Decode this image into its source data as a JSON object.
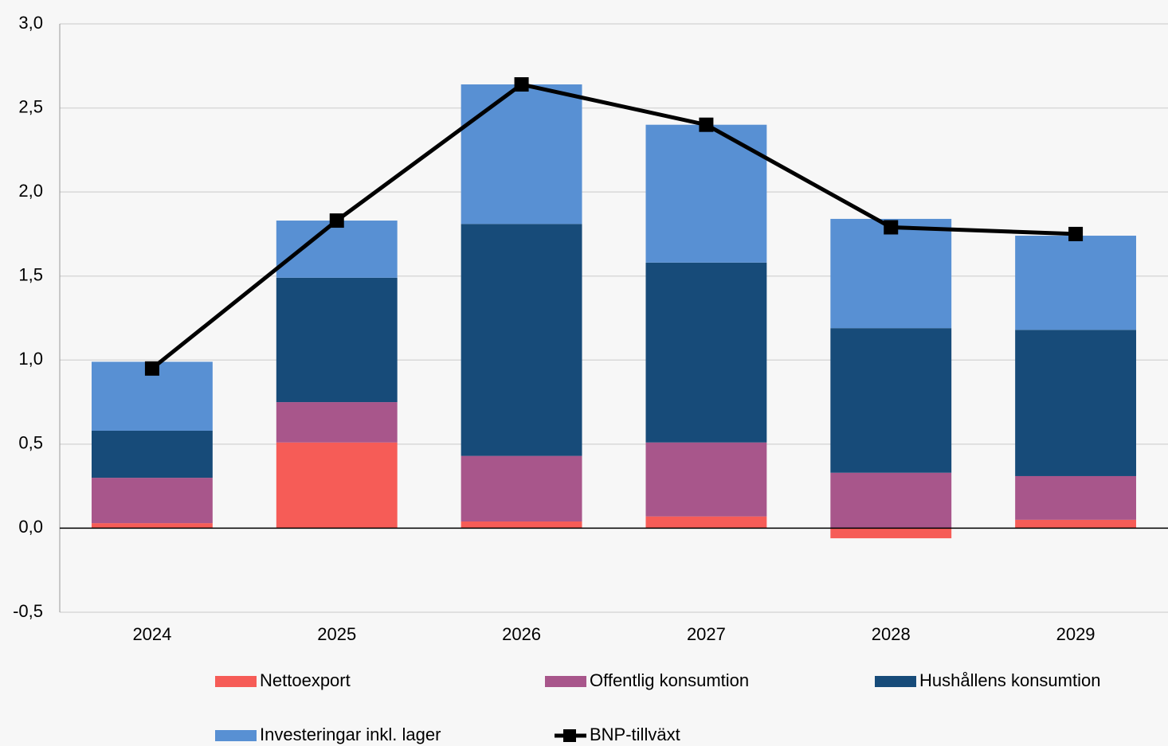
{
  "chart_data": {
    "type": "bar",
    "stacked": true,
    "categories": [
      "2024",
      "2025",
      "2026",
      "2027",
      "2028",
      "2029"
    ],
    "series": [
      {
        "name": "Nettoexport",
        "color": "#f65c57",
        "values": [
          0.03,
          0.51,
          0.04,
          0.07,
          -0.06,
          0.05
        ]
      },
      {
        "name": "Offentlig konsumtion",
        "color": "#a8568b",
        "values": [
          0.27,
          0.24,
          0.39,
          0.44,
          0.33,
          0.26
        ]
      },
      {
        "name": "Hushållens konsumtion",
        "color": "#174b79",
        "values": [
          0.28,
          0.74,
          1.38,
          1.07,
          0.86,
          0.87
        ]
      },
      {
        "name": "Investeringar inkl. lager",
        "color": "#5890d3",
        "values": [
          0.41,
          0.34,
          0.83,
          0.82,
          0.65,
          0.56
        ]
      },
      {
        "name": "BNP-tillväxt",
        "color": "#000000",
        "type": "line",
        "values": [
          0.95,
          1.83,
          2.64,
          2.4,
          1.79,
          1.75
        ]
      }
    ],
    "ylim": [
      -0.5,
      3.0
    ],
    "yticks": [
      {
        "value": -0.5,
        "label": "-0,5"
      },
      {
        "value": 0,
        "label": "0,0"
      },
      {
        "value": 0.5,
        "label": "0,5"
      },
      {
        "value": 1,
        "label": "1,0"
      },
      {
        "value": 1.5,
        "label": "1,5"
      },
      {
        "value": 2,
        "label": "2,0"
      },
      {
        "value": 2.5,
        "label": "2,5"
      },
      {
        "value": 3,
        "label": "3,0"
      }
    ],
    "grid": true,
    "legend": "bottom"
  }
}
